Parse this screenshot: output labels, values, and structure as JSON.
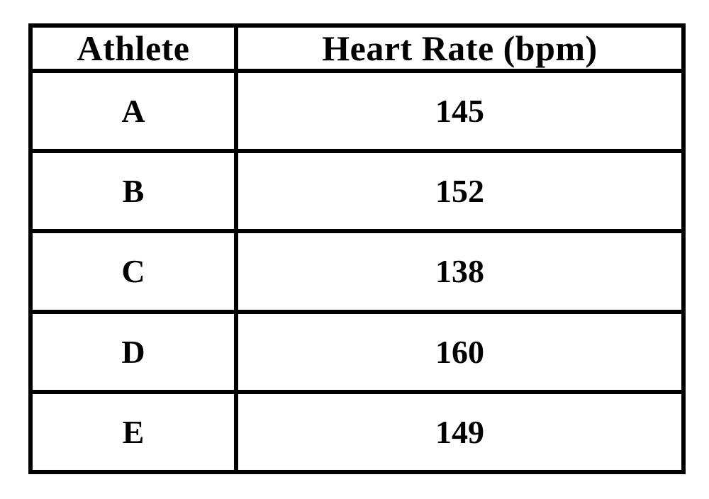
{
  "table": {
    "columns": [
      "Athlete",
      "Heart Rate (bpm)"
    ],
    "rows": [
      [
        "A",
        "145"
      ],
      [
        "B",
        "152"
      ],
      [
        "C",
        "138"
      ],
      [
        "D",
        "160"
      ],
      [
        "E",
        "149"
      ]
    ]
  },
  "chart_data": {
    "type": "table",
    "columns": [
      "Athlete",
      "Heart Rate (bpm)"
    ],
    "rows": [
      [
        "A",
        145
      ],
      [
        "B",
        152
      ],
      [
        "C",
        138
      ],
      [
        "D",
        160
      ],
      [
        "E",
        149
      ]
    ]
  },
  "colors": {
    "border": "#000000",
    "text": "#000000",
    "background": "#ffffff"
  }
}
